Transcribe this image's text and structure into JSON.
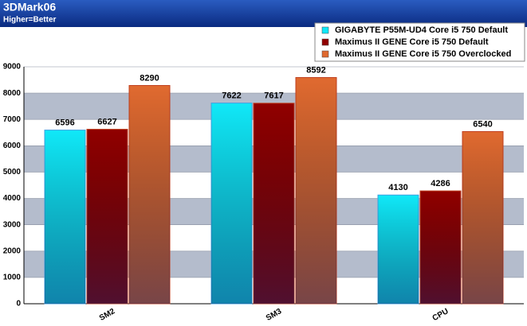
{
  "chart_data": {
    "type": "bar",
    "title": "3DMark06",
    "subtitle": "Higher=Better",
    "categories": [
      "SM2",
      "SM3",
      "CPU"
    ],
    "series": [
      {
        "name": "GIGABYTE P55M-UD4 Core i5 750 Default",
        "color": "#10e8f8",
        "values": [
          6596,
          7622,
          4130
        ]
      },
      {
        "name": "Maximus II GENE Core i5 750 Default",
        "color": "#900000",
        "values": [
          6627,
          7617,
          4286
        ]
      },
      {
        "name": "Maximus II GENE Core i5 750 Overclocked",
        "color": "#e06a30",
        "values": [
          8290,
          8592,
          6540
        ]
      }
    ],
    "ylim": [
      0,
      9000
    ],
    "yticks": [
      0,
      1000,
      2000,
      3000,
      4000,
      5000,
      6000,
      7000,
      8000,
      9000
    ],
    "grid": true
  }
}
